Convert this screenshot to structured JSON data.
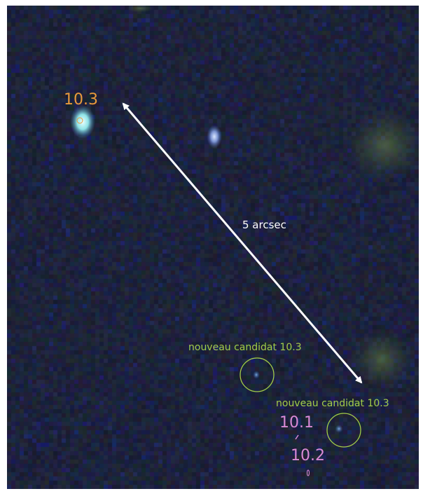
{
  "labels": {
    "scale_bar": "5 arcsec",
    "orange_source": "10.3",
    "candidate_upper": "nouveau candidat 10.3",
    "candidate_lower": "nouveau candidat 10.3",
    "pink_source_a": "10.1",
    "pink_source_b": "10.2"
  },
  "colors": {
    "background": "#1b2136",
    "orange": "#e99a3c",
    "green": "#a3cc4a",
    "pink": "#d98ad6",
    "arrow": "#ffffff"
  }
}
